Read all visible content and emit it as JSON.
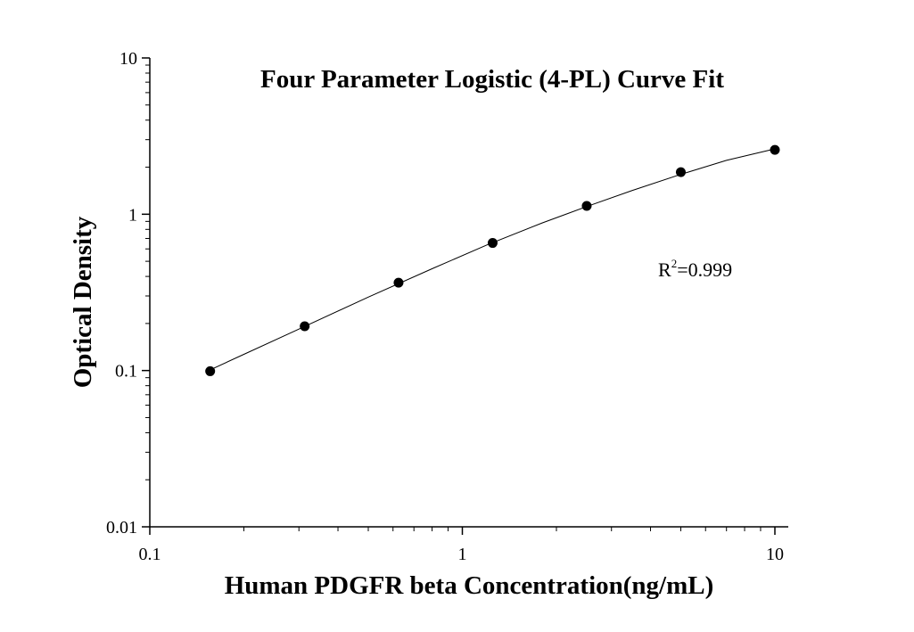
{
  "chart_data": {
    "type": "scatter",
    "title": "Four Parameter Logistic (4-PL) Curve Fit",
    "xlabel": "Human PDGFR beta Concentration(ng/mL)",
    "ylabel": "Optical Density",
    "x_scale": "log",
    "y_scale": "log",
    "xlim": [
      0.1,
      12
    ],
    "ylim": [
      0.01,
      10
    ],
    "x_ticks": [
      "0.1",
      "1",
      "10"
    ],
    "y_ticks": [
      "0.01",
      "0.1",
      "1",
      "10"
    ],
    "grid": false,
    "annotation": {
      "base": "R",
      "sup": "2",
      "rest": "=0.999"
    },
    "series": [
      {
        "kind": "points",
        "x": [
          0.156,
          0.313,
          0.625,
          1.25,
          2.5,
          5,
          10
        ],
        "y": [
          0.099,
          0.192,
          0.365,
          0.655,
          1.13,
          1.86,
          2.58
        ]
      },
      {
        "kind": "fit_curve",
        "x": [
          0.156,
          0.2,
          0.3,
          0.5,
          0.8,
          1.2,
          1.8,
          2.5,
          3.5,
          5,
          7,
          10
        ],
        "y": [
          0.101,
          0.127,
          0.184,
          0.295,
          0.448,
          0.637,
          0.88,
          1.12,
          1.42,
          1.8,
          2.21,
          2.62
        ]
      }
    ]
  }
}
